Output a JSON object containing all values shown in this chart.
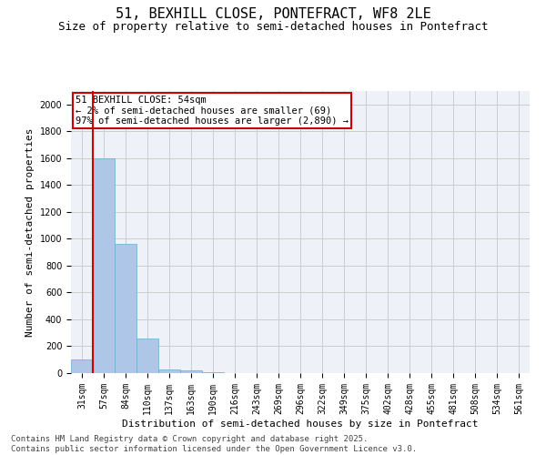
{
  "title1": "51, BEXHILL CLOSE, PONTEFRACT, WF8 2LE",
  "title2": "Size of property relative to semi-detached houses in Pontefract",
  "xlabel": "Distribution of semi-detached houses by size in Pontefract",
  "ylabel": "Number of semi-detached properties",
  "categories": [
    "31sqm",
    "57sqm",
    "84sqm",
    "110sqm",
    "137sqm",
    "163sqm",
    "190sqm",
    "216sqm",
    "243sqm",
    "269sqm",
    "296sqm",
    "322sqm",
    "349sqm",
    "375sqm",
    "402sqm",
    "428sqm",
    "455sqm",
    "481sqm",
    "508sqm",
    "534sqm",
    "561sqm"
  ],
  "values": [
    100,
    1600,
    960,
    255,
    30,
    20,
    10,
    0,
    0,
    0,
    0,
    0,
    0,
    0,
    0,
    0,
    0,
    0,
    0,
    0,
    0
  ],
  "bar_color": "#aec6e8",
  "bar_edge_color": "#6aaad4",
  "vline_color": "#cc0000",
  "vline_pos": 0.5,
  "annotation_title": "51 BEXHILL CLOSE: 54sqm",
  "annotation_line2": "← 2% of semi-detached houses are smaller (69)",
  "annotation_line3": "97% of semi-detached houses are larger (2,890) →",
  "annotation_box_color": "#cc0000",
  "ylim": [
    0,
    2100
  ],
  "yticks": [
    0,
    200,
    400,
    600,
    800,
    1000,
    1200,
    1400,
    1600,
    1800,
    2000
  ],
  "grid_color": "#cccccc",
  "bg_color": "#eef2f8",
  "footer1": "Contains HM Land Registry data © Crown copyright and database right 2025.",
  "footer2": "Contains public sector information licensed under the Open Government Licence v3.0.",
  "title_fontsize": 11,
  "subtitle_fontsize": 9,
  "annotation_fontsize": 7.5,
  "tick_fontsize": 7,
  "ylabel_fontsize": 8,
  "xlabel_fontsize": 8,
  "footer_fontsize": 6.5
}
